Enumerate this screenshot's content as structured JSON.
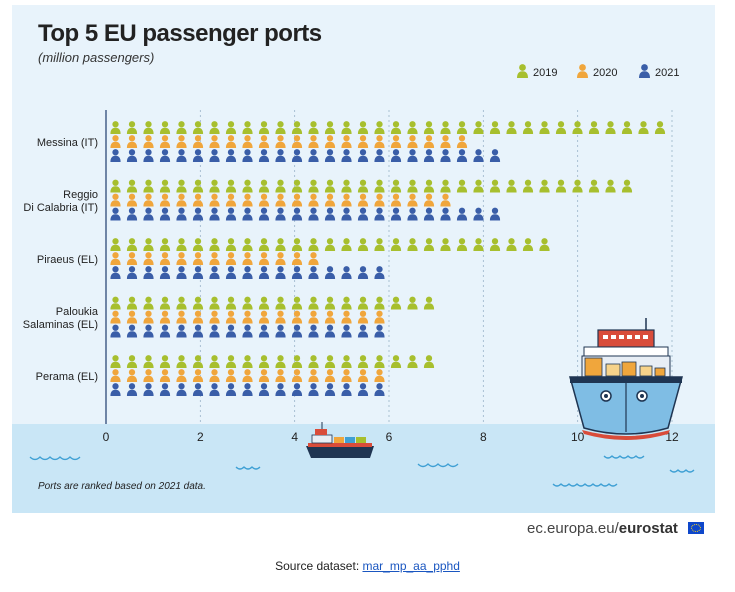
{
  "chart_data": {
    "type": "bar",
    "title": "Top 5 EU passenger ports",
    "subtitle": "(million passengers)",
    "categories": [
      [
        "Messina (IT)"
      ],
      [
        "Reggio",
        "Di Calabria (IT)"
      ],
      [
        "Piraeus (EL)"
      ],
      [
        "Paloukia",
        "Salaminas (EL)"
      ],
      [
        "Perama (EL)"
      ]
    ],
    "series": [
      {
        "name": "2019",
        "color": "#a7bf2e",
        "values": [
          11.9,
          11.3,
          9.4,
          7.0,
          7.0
        ]
      },
      {
        "name": "2020",
        "color": "#f0a63c",
        "values": [
          7.7,
          7.6,
          4.5,
          5.9,
          5.9
        ]
      },
      {
        "name": "2021",
        "color": "#3a5ea8",
        "values": [
          8.5,
          8.5,
          5.9,
          5.9,
          5.9
        ]
      }
    ],
    "xticks": [
      "0",
      "2",
      "4",
      "6",
      "8",
      "10",
      "12"
    ],
    "xlim": [
      0,
      12
    ],
    "orientation": "horizontal",
    "marker": "person-icon",
    "grid": true,
    "legend": "top-right"
  },
  "footnote": "Ports are ranked based on 2021 data.",
  "brand": {
    "prefix": "ec.europa.eu/",
    "name": "eurostat"
  },
  "source": {
    "label": "Source dataset: ",
    "link_text": "mar_mp_aa_pphd"
  },
  "illustrations": [
    "ship-icon",
    "ferry-icon",
    "water-wave-icon"
  ],
  "colors": {
    "background": "#e8f3fb",
    "water": "#c9e6f6",
    "wave": "#3fa0d4"
  }
}
